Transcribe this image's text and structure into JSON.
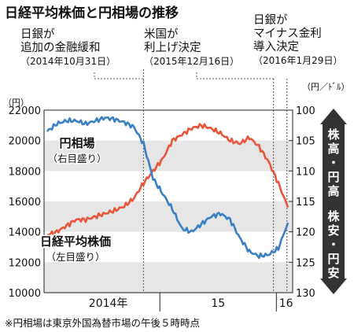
{
  "title": "日経平均株価と円相場の推移",
  "annotations": [
    {
      "line1": "日銀が",
      "line2": "追加の金融緩和",
      "date": "（2014年10月31日）"
    },
    {
      "line1": "米国が",
      "line2": "利上げ決定",
      "date": "（2015年12月16日）"
    },
    {
      "line1": "日銀が",
      "line2": "マイナス金利",
      "line3": "導入決定",
      "date": "（2016年1月29日）"
    }
  ],
  "footnote": "※円相場は東京外国為替市場の午後５時時点",
  "colors": {
    "nikkei": "#3a7fc4",
    "yen": "#e8553a",
    "band": "#e6e6e6",
    "arrow": "#333333"
  },
  "chart_data": {
    "type": "line",
    "title": "日経平均株価と円相場の推移",
    "left_axis": {
      "unit": "（円）",
      "ticks": [
        10000,
        12000,
        14000,
        16000,
        18000,
        20000,
        22000
      ],
      "ylim": [
        10000,
        22000
      ]
    },
    "right_axis": {
      "unit": "（円／ﾄﾞﾙ）",
      "ticks": [
        100,
        105,
        110,
        115,
        120,
        125,
        130
      ],
      "ylim": [
        100,
        130
      ],
      "inverted": true
    },
    "x_labels": [
      "2014年",
      "15",
      "16"
    ],
    "arrow_labels": {
      "up": "株高・円高",
      "down": "株安・円安"
    },
    "x": [
      "2014-01",
      "2014-02",
      "2014-03",
      "2014-04",
      "2014-05",
      "2014-06",
      "2014-07",
      "2014-08",
      "2014-09",
      "2014-10",
      "2014-11",
      "2014-12",
      "2015-01",
      "2015-02",
      "2015-03",
      "2015-04",
      "2015-05",
      "2015-06",
      "2015-07",
      "2015-08",
      "2015-09",
      "2015-10",
      "2015-11",
      "2015-12",
      "2016-01",
      "2016-02"
    ],
    "series": [
      {
        "name": "日経平均株価",
        "sublabel": "（左目盛り）",
        "axis": "left",
        "values": [
          20600,
          21100,
          21300,
          21300,
          21100,
          21300,
          21500,
          21400,
          21200,
          20900,
          19800,
          17500,
          16500,
          15500,
          14200,
          14000,
          14500,
          15000,
          15200,
          14800,
          13600,
          12700,
          12400,
          12500,
          12900,
          14600
        ]
      },
      {
        "name": "円相場",
        "sublabel": "（右目盛り）",
        "axis": "right",
        "values": [
          120.5,
          120,
          119,
          118,
          118,
          117.5,
          117,
          116.5,
          115.8,
          114.5,
          112,
          110,
          108,
          105,
          104,
          103,
          102.5,
          103,
          103.8,
          105,
          105.5,
          104.5,
          106,
          108.5,
          112,
          116
        ]
      }
    ]
  }
}
